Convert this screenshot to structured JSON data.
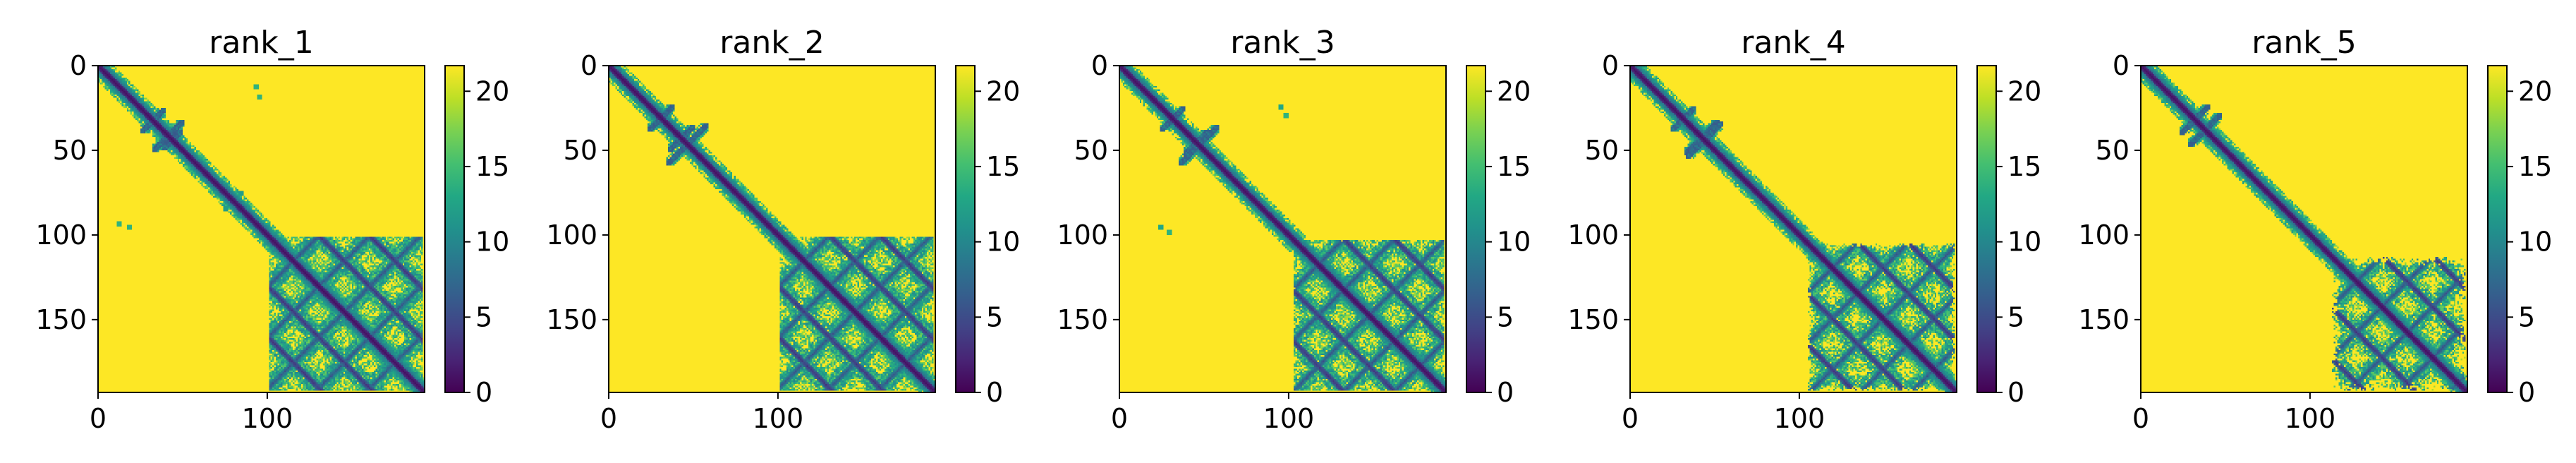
{
  "chart_data": [
    {
      "type": "heatmap",
      "title": "rank_1",
      "xlim": [
        0,
        193
      ],
      "ylim": [
        193,
        0
      ],
      "xticks": [
        "0",
        "100"
      ],
      "yticks": [
        "0",
        "50",
        "100",
        "150"
      ],
      "colorbar": {
        "range": [
          0,
          21.7
        ],
        "ticks": [
          "0",
          "5",
          "10",
          "15",
          "20"
        ],
        "colormap": "viridis"
      },
      "pattern": {
        "diagonal_band_width": 5,
        "contacts": [
          [
            27,
            37,
            "anti"
          ],
          [
            40,
            47,
            "anti"
          ],
          [
            34,
            48,
            "anti"
          ]
        ],
        "scatter": [
          [
            75,
            84,
            12
          ],
          [
            93,
            12,
            14
          ],
          [
            95,
            18,
            14
          ]
        ],
        "domain_b": [
          100,
          193
        ],
        "domain_b_strength": 1.0
      }
    },
    {
      "type": "heatmap",
      "title": "rank_2",
      "xlim": [
        0,
        193
      ],
      "ylim": [
        193,
        0
      ],
      "xticks": [
        "0",
        "100"
      ],
      "yticks": [
        "0",
        "50",
        "100",
        "150"
      ],
      "colorbar": {
        "range": [
          0,
          21.7
        ],
        "ticks": [
          "0",
          "5",
          "10",
          "15",
          "20"
        ],
        "colormap": "viridis"
      },
      "pattern": {
        "diagonal_band_width": 5,
        "contacts": [
          [
            25,
            36,
            "anti"
          ],
          [
            37,
            48,
            "anti"
          ],
          [
            36,
            56,
            "anti"
          ]
        ],
        "scatter": [],
        "domain_b": [
          100,
          193
        ],
        "domain_b_strength": 1.0
      }
    },
    {
      "type": "heatmap",
      "title": "rank_3",
      "xlim": [
        0,
        193
      ],
      "ylim": [
        193,
        0
      ],
      "xticks": [
        "0",
        "100"
      ],
      "yticks": [
        "0",
        "50",
        "100",
        "150"
      ],
      "colorbar": {
        "range": [
          0,
          21.7
        ],
        "ticks": [
          "0",
          "5",
          "10",
          "15",
          "20"
        ],
        "colormap": "viridis"
      },
      "pattern": {
        "diagonal_band_width": 5,
        "contacts": [
          [
            26,
            36,
            "anti"
          ],
          [
            40,
            50,
            "anti"
          ],
          [
            37,
            56,
            "anti"
          ]
        ],
        "scatter": [
          [
            95,
            24,
            13
          ],
          [
            29,
            98,
            14
          ]
        ],
        "domain_b": [
          102,
          193
        ],
        "domain_b_strength": 0.95
      }
    },
    {
      "type": "heatmap",
      "title": "rank_4",
      "xlim": [
        0,
        193
      ],
      "ylim": [
        193,
        0
      ],
      "xticks": [
        "0",
        "100"
      ],
      "yticks": [
        "0",
        "50",
        "100",
        "150"
      ],
      "colorbar": {
        "range": [
          0,
          21.7
        ],
        "ticks": [
          "0",
          "5",
          "10",
          "15",
          "20"
        ],
        "colormap": "viridis"
      },
      "pattern": {
        "diagonal_band_width": 5,
        "contacts": [
          [
            26,
            36,
            "anti"
          ],
          [
            35,
            52,
            "anti"
          ],
          [
            34,
            50,
            "anti"
          ]
        ],
        "scatter": [],
        "domain_b": [
          104,
          193
        ],
        "domain_b_strength": 0.85
      }
    },
    {
      "type": "heatmap",
      "title": "rank_5",
      "xlim": [
        0,
        193
      ],
      "ylim": [
        193,
        0
      ],
      "xticks": [
        "0",
        "100"
      ],
      "yticks": [
        "0",
        "50",
        "100",
        "150"
      ],
      "colorbar": {
        "range": [
          0,
          21.7
        ],
        "ticks": [
          "0",
          "5",
          "10",
          "15",
          "20"
        ],
        "colormap": "viridis"
      },
      "pattern": {
        "diagonal_band_width": 5,
        "contacts": [
          [
            25,
            38,
            "anti"
          ],
          [
            30,
            45,
            "anti"
          ]
        ],
        "scatter": [],
        "domain_b": [
          112,
          193
        ],
        "domain_b_strength": 0.75
      }
    }
  ]
}
